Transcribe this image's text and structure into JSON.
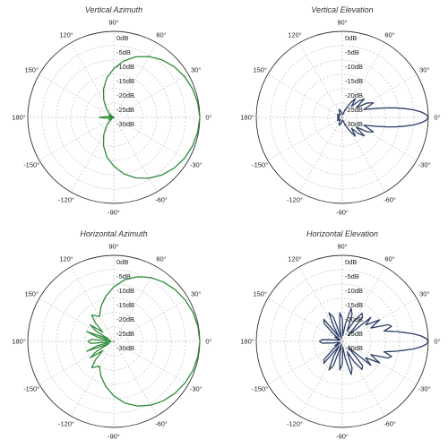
{
  "chart_data": [
    {
      "type": "polar",
      "title": "Vertical Azimuth",
      "color": "#2e8b3a",
      "radial_ticks": [
        "0dB",
        "-5dB",
        "-10dB",
        "-15dB",
        "-20dB",
        "-25dB",
        "-30dB"
      ],
      "angle_ticks": [
        "0°",
        "30°",
        "60°",
        "90°",
        "120°",
        "150°",
        "180°",
        "-150°",
        "-120°",
        "-90°",
        "-60°",
        "-30°"
      ],
      "rlim": [
        -30,
        0
      ],
      "series": [
        {
          "angles": [
            0,
            10,
            20,
            30,
            40,
            50,
            60,
            70,
            80,
            90,
            100,
            110,
            120,
            130,
            140,
            150,
            155,
            160,
            165,
            170,
            175,
            180,
            185,
            190,
            195,
            200,
            205,
            210,
            220,
            230,
            240,
            250,
            260,
            270,
            280,
            290,
            300,
            310,
            320,
            330,
            340,
            350
          ],
          "values": [
            0,
            -0.3,
            -0.8,
            -1.5,
            -2.5,
            -3.8,
            -5.5,
            -7.5,
            -10,
            -13,
            -16,
            -19.5,
            -23,
            -26,
            -28,
            -29.5,
            -28,
            -29.5,
            -30,
            -29.5,
            -27,
            -25,
            -27,
            -29.5,
            -30,
            -29.5,
            -28,
            -29.5,
            -28,
            -26,
            -23,
            -19.5,
            -16,
            -13,
            -10,
            -7.5,
            -5.5,
            -3.8,
            -2.5,
            -1.5,
            -0.8,
            -0.3
          ]
        }
      ]
    },
    {
      "type": "polar",
      "title": "Vertical Elevation",
      "color": "#2c3e66",
      "radial_ticks": [
        "0dB",
        "-5dB",
        "-10dB",
        "-15dB",
        "-20dB",
        "-25dB",
        "-30dB"
      ],
      "angle_ticks": [
        "0°",
        "30°",
        "60°",
        "90°",
        "120°",
        "150°",
        "180°",
        "-150°",
        "-120°",
        "-90°",
        "-60°",
        "-30°"
      ],
      "rlim": [
        -30,
        0
      ],
      "series": [
        {
          "angles": [
            0,
            2,
            4,
            6,
            8,
            10,
            12,
            15,
            20,
            25,
            30,
            35,
            40,
            45,
            50,
            55,
            60,
            70,
            80,
            90,
            100,
            110,
            120,
            130,
            140,
            150,
            160,
            170,
            180,
            190,
            200,
            210,
            220,
            230,
            240,
            250,
            260,
            270,
            280,
            290,
            300,
            305,
            310,
            315,
            320,
            325,
            330,
            335,
            340,
            345,
            348,
            350,
            352,
            354,
            356,
            358
          ],
          "values": [
            0,
            -0.7,
            -2.5,
            -5,
            -8,
            -11,
            -14,
            -18,
            -22,
            -18,
            -20,
            -24,
            -20,
            -22,
            -25,
            -22,
            -24,
            -27,
            -29,
            -29,
            -28,
            -27,
            -28,
            -29,
            -28.5,
            -28,
            -28.8,
            -28.3,
            -29,
            -28.3,
            -28.8,
            -28,
            -28.5,
            -29,
            -28,
            -27,
            -28,
            -29,
            -29,
            -27,
            -24,
            -22,
            -25,
            -22,
            -20,
            -24,
            -20,
            -18,
            -22,
            -18,
            -14,
            -11,
            -8,
            -5,
            -2.5,
            -0.7
          ]
        }
      ]
    },
    {
      "type": "polar",
      "title": "Horizontal Azimuth",
      "color": "#2e8b3a",
      "radial_ticks": [
        "0dB",
        "-5dB",
        "-10dB",
        "-15dB",
        "-20dB",
        "-25dB",
        "-30dB"
      ],
      "angle_ticks": [
        "0°",
        "30°",
        "60°",
        "90°",
        "120°",
        "150°",
        "180°",
        "-150°",
        "-120°",
        "-90°",
        "-60°",
        "-30°"
      ],
      "rlim": [
        -30,
        0
      ],
      "series": [
        {
          "angles": [
            0,
            10,
            20,
            30,
            40,
            50,
            60,
            70,
            80,
            90,
            100,
            110,
            120,
            130,
            135,
            140,
            145,
            150,
            155,
            160,
            165,
            170,
            175,
            180,
            185,
            190,
            195,
            200,
            205,
            210,
            215,
            220,
            225,
            230,
            240,
            250,
            260,
            270,
            280,
            290,
            300,
            310,
            320,
            330,
            340,
            350
          ],
          "values": [
            0,
            -0.2,
            -0.6,
            -1.2,
            -2,
            -3,
            -4.3,
            -6,
            -8.2,
            -11,
            -14,
            -17,
            -20,
            -18,
            -21,
            -25,
            -20,
            -23,
            -28,
            -20,
            -24,
            -29,
            -22,
            -21,
            -22,
            -29,
            -24,
            -20,
            -28,
            -23,
            -20,
            -25,
            -21,
            -18,
            -20,
            -17,
            -14,
            -11,
            -8.2,
            -6,
            -4.3,
            -3,
            -2,
            -1.2,
            -0.6,
            -0.2
          ]
        }
      ]
    },
    {
      "type": "polar",
      "title": "Horizontal Elevation",
      "color": "#2c3e66",
      "radial_ticks": [
        "0dB",
        "-5dB",
        "-10dB",
        "-15dB",
        "-20dB",
        "-25dB",
        "-30dB"
      ],
      "angle_ticks": [
        "0°",
        "30°",
        "60°",
        "90°",
        "120°",
        "150°",
        "180°",
        "-150°",
        "-120°",
        "-90°",
        "-60°",
        "-30°"
      ],
      "rlim": [
        -30,
        0
      ],
      "series": [
        {
          "angles": [
            0,
            2,
            4,
            6,
            8,
            10,
            12,
            14,
            17,
            20,
            25,
            30,
            35,
            40,
            45,
            50,
            55,
            60,
            65,
            70,
            75,
            80,
            85,
            90,
            95,
            100,
            105,
            110,
            115,
            120,
            125,
            130,
            135,
            140,
            145,
            150,
            160,
            170,
            175,
            180,
            185,
            190,
            200,
            210,
            215,
            220,
            225,
            230,
            235,
            240,
            245,
            250,
            255,
            260,
            265,
            270,
            275,
            280,
            285,
            290,
            295,
            300,
            305,
            310,
            315,
            320,
            325,
            330,
            335,
            340,
            343,
            346,
            348,
            350,
            352,
            354,
            356,
            358
          ],
          "values": [
            0,
            -0.7,
            -2.5,
            -5,
            -8,
            -10.5,
            -13,
            -15,
            -12,
            -13,
            -19,
            -15,
            -20,
            -17,
            -27,
            -19,
            -18,
            -22,
            -26,
            -20,
            -18,
            -24,
            -28,
            -22,
            -20,
            -25,
            -29,
            -21,
            -19,
            -24,
            -28,
            -20,
            -21,
            -26,
            -29,
            -27,
            -29,
            -27,
            -23,
            -22,
            -23,
            -27,
            -29,
            -27,
            -29,
            -26,
            -21,
            -20,
            -28,
            -24,
            -19,
            -21,
            -29,
            -25,
            -20,
            -22,
            -28,
            -24,
            -18,
            -20,
            -26,
            -22,
            -18,
            -19,
            -27,
            -17,
            -20,
            -15,
            -19,
            -13,
            -12,
            -15,
            -13,
            -10.5,
            -8,
            -5,
            -2.5,
            -0.7
          ]
        }
      ]
    }
  ]
}
